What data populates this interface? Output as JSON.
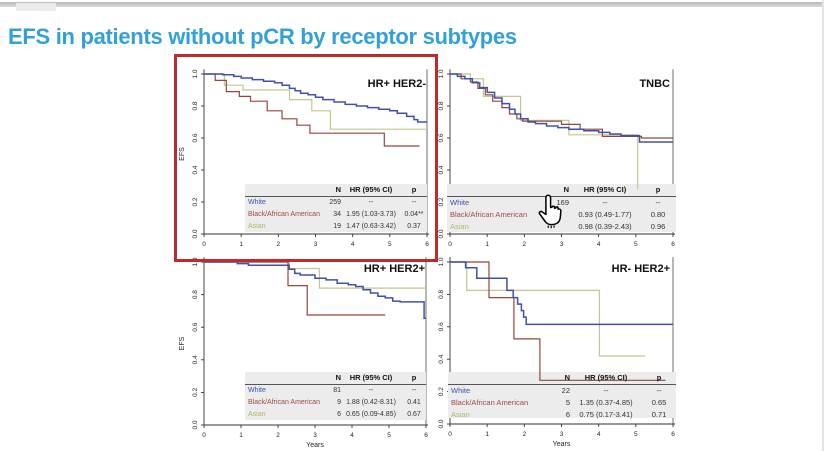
{
  "page": {
    "title": "EFS in patients without pCR by receptor subtypes"
  },
  "colors": {
    "title": "#32a1d8",
    "highlight_border": "#bf2a2e",
    "table_bg": "#ececec",
    "label_white": "#3c50b4",
    "label_black": "#9c4a42",
    "label_asian": "#a9bd55",
    "axis": "#333333"
  },
  "cursor": {
    "type": "hand-pointer"
  },
  "chart_data": [
    {
      "type": "line",
      "subtype": "kaplan-meier",
      "title": "HR+ HER2-",
      "xlabel": "",
      "ylabel": "EFS",
      "xlim": [
        0,
        6
      ],
      "ylim": [
        0.0,
        1.0
      ],
      "xticks": [
        0,
        1,
        2,
        3,
        4,
        5,
        6
      ],
      "yticks": [
        0.0,
        0.2,
        0.4,
        0.6,
        0.8,
        1.0
      ],
      "highlighted": true,
      "series": [
        {
          "name": "White",
          "color": "#4052a8",
          "points": [
            [
              0,
              1
            ],
            [
              0.5,
              0.995
            ],
            [
              0.8,
              0.985
            ],
            [
              1.0,
              0.975
            ],
            [
              1.3,
              0.965
            ],
            [
              1.6,
              0.955
            ],
            [
              1.9,
              0.945
            ],
            [
              2.1,
              0.93
            ],
            [
              2.3,
              0.91
            ],
            [
              2.45,
              0.895
            ],
            [
              2.6,
              0.88
            ],
            [
              2.8,
              0.87
            ],
            [
              3.0,
              0.855
            ],
            [
              3.2,
              0.84
            ],
            [
              3.5,
              0.825
            ],
            [
              3.8,
              0.81
            ],
            [
              4.1,
              0.8
            ],
            [
              4.4,
              0.79
            ],
            [
              4.7,
              0.78
            ],
            [
              5.0,
              0.77
            ],
            [
              5.2,
              0.755
            ],
            [
              5.45,
              0.735
            ],
            [
              5.65,
              0.715
            ],
            [
              5.75,
              0.7
            ],
            [
              6,
              0.7
            ]
          ]
        },
        {
          "name": "Black/African American",
          "color": "#94463e",
          "points": [
            [
              0,
              1
            ],
            [
              0.3,
              0.96
            ],
            [
              0.6,
              0.89
            ],
            [
              0.95,
              0.86
            ],
            [
              1.25,
              0.83
            ],
            [
              1.7,
              0.77
            ],
            [
              2.1,
              0.72
            ],
            [
              2.5,
              0.68
            ],
            [
              2.85,
              0.63
            ],
            [
              4.85,
              0.55
            ],
            [
              5.8,
              0.55
            ]
          ]
        },
        {
          "name": "Asian",
          "color": "#c2c78c",
          "points": [
            [
              0,
              1
            ],
            [
              0.55,
              0.93
            ],
            [
              1.05,
              0.9
            ],
            [
              2.3,
              0.84
            ],
            [
              2.9,
              0.77
            ],
            [
              3.4,
              0.655
            ],
            [
              6,
              0.655
            ]
          ]
        }
      ],
      "table": {
        "headers": [
          "N",
          "HR (95% CI)",
          "p"
        ],
        "rows": [
          {
            "label": "White",
            "n": "259",
            "hr": "--",
            "p": "--"
          },
          {
            "label": "Black/African American",
            "n": "34",
            "hr": "1.95 (1.03-3.73)",
            "p": "0.04**"
          },
          {
            "label": "Asian",
            "n": "19",
            "hr": "1.47 (0.63-3.42)",
            "p": "0.37"
          }
        ]
      }
    },
    {
      "type": "line",
      "subtype": "kaplan-meier",
      "title": "TNBC",
      "xlabel": "",
      "ylabel": "",
      "xlim": [
        0,
        6
      ],
      "ylim": [
        0.0,
        1.0
      ],
      "xticks": [
        0,
        1,
        2,
        3,
        4,
        5,
        6
      ],
      "yticks": [
        0.0,
        0.2,
        0.4,
        0.6,
        0.8,
        1.0
      ],
      "highlighted": false,
      "series": [
        {
          "name": "White",
          "color": "#4052a8",
          "points": [
            [
              0,
              1
            ],
            [
              0.2,
              0.985
            ],
            [
              0.4,
              0.97
            ],
            [
              0.6,
              0.945
            ],
            [
              0.8,
              0.915
            ],
            [
              1.0,
              0.885
            ],
            [
              1.2,
              0.85
            ],
            [
              1.4,
              0.815
            ],
            [
              1.6,
              0.78
            ],
            [
              1.75,
              0.75
            ],
            [
              1.9,
              0.72
            ],
            [
              2.1,
              0.7
            ],
            [
              2.3,
              0.69
            ],
            [
              2.6,
              0.675
            ],
            [
              2.9,
              0.665
            ],
            [
              3.2,
              0.655
            ],
            [
              3.6,
              0.645
            ],
            [
              4.0,
              0.635
            ],
            [
              4.3,
              0.625
            ],
            [
              4.6,
              0.615
            ],
            [
              5.1,
              0.575
            ],
            [
              6,
              0.575
            ]
          ]
        },
        {
          "name": "Black/African American",
          "color": "#94463e",
          "points": [
            [
              0,
              1
            ],
            [
              0.3,
              0.97
            ],
            [
              0.55,
              0.95
            ],
            [
              0.75,
              0.91
            ],
            [
              0.95,
              0.87
            ],
            [
              1.15,
              0.83
            ],
            [
              1.4,
              0.79
            ],
            [
              1.6,
              0.75
            ],
            [
              1.8,
              0.72
            ],
            [
              1.95,
              0.705
            ],
            [
              2.75,
              0.705
            ],
            [
              3.0,
              0.685
            ],
            [
              3.5,
              0.655
            ],
            [
              4.1,
              0.61
            ],
            [
              5.15,
              0.6
            ],
            [
              6,
              0.6
            ]
          ]
        },
        {
          "name": "Asian",
          "color": "#c2c78c",
          "points": [
            [
              0,
              1
            ],
            [
              0.55,
              0.97
            ],
            [
              0.9,
              0.86
            ],
            [
              1.9,
              0.71
            ],
            [
              3.2,
              0.62
            ],
            [
              5.05,
              0.28
            ]
          ]
        }
      ],
      "table": {
        "headers": [
          "N",
          "HR (95% CI)",
          "p"
        ],
        "rows": [
          {
            "label": "White",
            "n": "169",
            "hr": "--",
            "p": "--"
          },
          {
            "label": "Black/African American",
            "n": "",
            "hr": "0.93 (0.49-1.77)",
            "p": "0.80"
          },
          {
            "label": "Asian",
            "n": "",
            "hr": "0.98 (0.39-2.43)",
            "p": "0.96"
          }
        ]
      }
    },
    {
      "type": "line",
      "subtype": "kaplan-meier",
      "title": "HR+ HER2+",
      "xlabel": "Years",
      "ylabel": "EFS",
      "xlim": [
        0,
        6
      ],
      "ylim": [
        0.0,
        1.0
      ],
      "xticks": [
        0,
        1,
        2,
        3,
        4,
        5,
        6
      ],
      "yticks": [
        0.0,
        0.2,
        0.4,
        0.6,
        0.8,
        1.0
      ],
      "highlighted": false,
      "series": [
        {
          "name": "White",
          "color": "#4052a8",
          "points": [
            [
              0,
              1
            ],
            [
              0.9,
              0.99
            ],
            [
              1.2,
              0.98
            ],
            [
              2.3,
              0.955
            ],
            [
              2.45,
              0.93
            ],
            [
              2.6,
              0.92
            ],
            [
              3.0,
              0.9
            ],
            [
              3.3,
              0.89
            ],
            [
              3.6,
              0.87
            ],
            [
              3.9,
              0.86
            ],
            [
              4.1,
              0.85
            ],
            [
              4.3,
              0.83
            ],
            [
              4.5,
              0.81
            ],
            [
              4.7,
              0.79
            ],
            [
              4.9,
              0.78
            ],
            [
              5.1,
              0.76
            ],
            [
              5.3,
              0.755
            ],
            [
              5.9,
              0.755
            ],
            [
              5.95,
              0.655
            ],
            [
              6,
              0.655
            ]
          ]
        },
        {
          "name": "Black/African American",
          "color": "#94463e",
          "points": [
            [
              0,
              1
            ],
            [
              2.27,
              0.855
            ],
            [
              2.79,
              0.675
            ],
            [
              4.9,
              0.675
            ]
          ]
        },
        {
          "name": "Asian",
          "color": "#c2c78c",
          "points": [
            [
              0,
              1
            ],
            [
              2.3,
              0.96
            ],
            [
              3.12,
              0.84
            ],
            [
              6,
              0.84
            ]
          ]
        }
      ],
      "table": {
        "headers": [
          "N",
          "HR (95% CI)",
          "p"
        ],
        "rows": [
          {
            "label": "White",
            "n": "81",
            "hr": "--",
            "p": "--"
          },
          {
            "label": "Black/African American",
            "n": "9",
            "hr": "1.88 (0.42-8.31)",
            "p": "0.41"
          },
          {
            "label": "Asian",
            "n": "6",
            "hr": "0.65 (0.09-4.85)",
            "p": "0.67"
          }
        ]
      }
    },
    {
      "type": "line",
      "subtype": "kaplan-meier",
      "title": "HR- HER2+",
      "xlabel": "Years",
      "ylabel": "",
      "xlim": [
        0,
        6
      ],
      "ylim": [
        0.0,
        1.0
      ],
      "xticks": [
        0,
        1,
        2,
        3,
        4,
        5,
        6
      ],
      "yticks": [
        0.0,
        0.2,
        0.4,
        0.6,
        0.8,
        1.0
      ],
      "highlighted": false,
      "series": [
        {
          "name": "White",
          "color": "#4052a8",
          "points": [
            [
              0,
              1
            ],
            [
              0.42,
              0.965
            ],
            [
              0.72,
              0.9
            ],
            [
              1.53,
              0.825
            ],
            [
              1.7,
              0.78
            ],
            [
              1.82,
              0.74
            ],
            [
              1.92,
              0.7
            ],
            [
              1.98,
              0.66
            ],
            [
              2.05,
              0.615
            ],
            [
              6,
              0.615
            ]
          ]
        },
        {
          "name": "Black/African American",
          "color": "#94463e",
          "points": [
            [
              0,
              1
            ],
            [
              1.05,
              0.78
            ],
            [
              1.72,
              0.525
            ],
            [
              2.42,
              0.27
            ],
            [
              5.8,
              0.27
            ]
          ]
        },
        {
          "name": "Asian",
          "color": "#c2c78c",
          "points": [
            [
              0,
              1
            ],
            [
              0.45,
              0.825
            ],
            [
              4.02,
              0.42
            ],
            [
              5.25,
              0.42
            ]
          ]
        }
      ],
      "table": {
        "headers": [
          "N",
          "HR (95% CI)",
          "p"
        ],
        "rows": [
          {
            "label": "White",
            "n": "22",
            "hr": "--",
            "p": "--"
          },
          {
            "label": "Black/African American",
            "n": "5",
            "hr": "1.35 (0.37-4.85)",
            "p": "0.65"
          },
          {
            "label": "Asian",
            "n": "6",
            "hr": "0.75 (0.17-3.41)",
            "p": "0.71"
          }
        ]
      }
    }
  ]
}
